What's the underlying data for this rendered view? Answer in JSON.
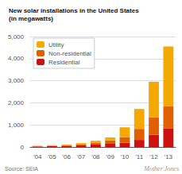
{
  "chart_data": {
    "type": "bar",
    "title": "New solar installations in the United States",
    "subtitle": "(in megawatts)",
    "categories": [
      "'04",
      "'05",
      "'06",
      "'07",
      "'08",
      "'09",
      "'10",
      "'11",
      "'12",
      "'13"
    ],
    "series": [
      {
        "name": "Residential",
        "color": "#CC1111",
        "values": [
          20,
          35,
          50,
          70,
          110,
          170,
          190,
          320,
          550,
          850
        ]
      },
      {
        "name": "Non-residential",
        "color": "#E06000",
        "values": [
          15,
          20,
          30,
          50,
          80,
          130,
          250,
          500,
          800,
          1000
        ]
      },
      {
        "name": "Utility",
        "color": "#F5A800",
        "values": [
          20,
          25,
          35,
          55,
          90,
          130,
          450,
          900,
          1600,
          2700
        ]
      }
    ],
    "stacked": true,
    "ylim": [
      0,
      5000
    ],
    "yticks": [
      0,
      {
        "value": 1000,
        "label": "1,000"
      },
      {
        "value": 2000,
        "label": "2,000"
      },
      {
        "value": 3000,
        "label": "3,000"
      },
      {
        "value": 4000,
        "label": "4,000"
      },
      {
        "value": 5000,
        "label": "5,000"
      }
    ],
    "grid": true,
    "legend": "upper left",
    "annotations": [
      "Source: SEIA",
      "Mother Jones"
    ]
  }
}
